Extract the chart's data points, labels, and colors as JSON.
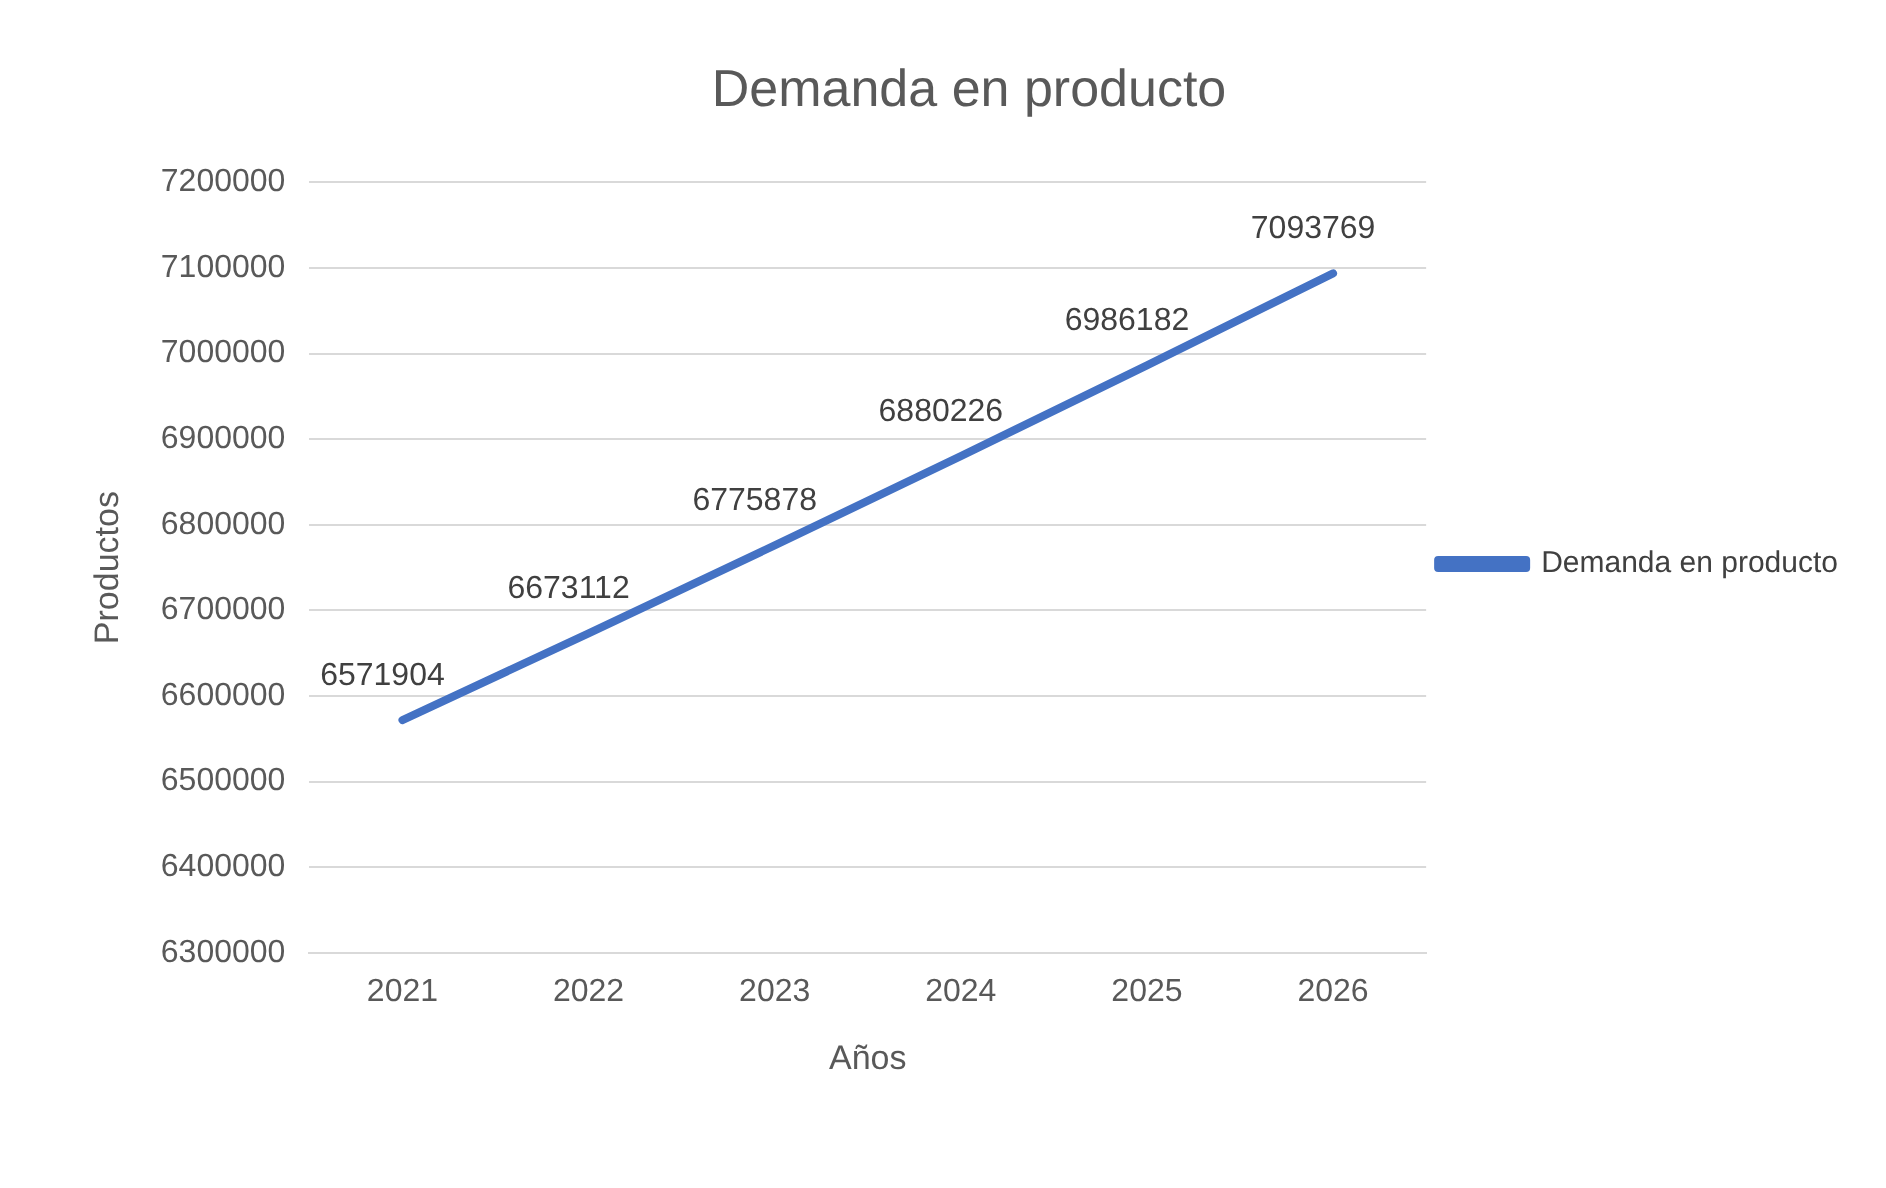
{
  "chart_data": {
    "type": "line",
    "title": "Demanda en producto",
    "xlabel": "Años",
    "ylabel": "Productos",
    "categories": [
      "2021",
      "2022",
      "2023",
      "2024",
      "2025",
      "2026"
    ],
    "series": [
      {
        "name": "Demanda en producto",
        "color": "#4472c4",
        "values": [
          6571904,
          6673112,
          6775878,
          6880226,
          6986182,
          7093769
        ]
      }
    ],
    "ylim": [
      6300000,
      7200000
    ],
    "yticks": [
      6300000,
      6400000,
      6500000,
      6600000,
      6700000,
      6800000,
      6900000,
      7000000,
      7100000,
      7200000
    ],
    "grid": "y",
    "legend": "right",
    "marker": "none",
    "line_style": "solid",
    "data_labels": true
  }
}
